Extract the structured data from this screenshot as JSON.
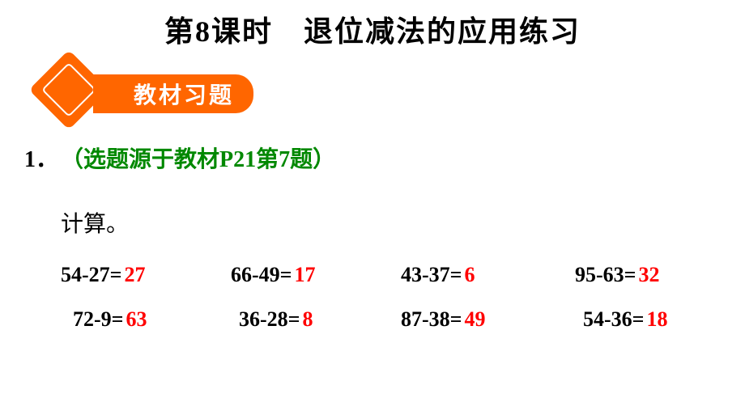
{
  "title": "第8课时　退位减法的应用练习",
  "section_label": "教材习题",
  "question_number": "1．",
  "question_source": "（选题源于教材P21第7题）",
  "instruction": "计算。",
  "colors": {
    "accent": "#ff6600",
    "source_text": "#008800",
    "answer": "#ff0000",
    "text": "#000000",
    "background": "#ffffff"
  },
  "fonts": {
    "title_size": 36,
    "body_size": 28,
    "problem_size": 26
  },
  "problems": {
    "row1": [
      {
        "expr": "54-27=",
        "answer": "27"
      },
      {
        "expr": "66-49=",
        "answer": "17"
      },
      {
        "expr": "43-37=",
        "answer": "6"
      },
      {
        "expr": "95-63=",
        "answer": "32"
      }
    ],
    "row2": [
      {
        "expr": "72-9=",
        "answer": "63"
      },
      {
        "expr": "36-28=",
        "answer": "8"
      },
      {
        "expr": "87-38=",
        "answer": "49"
      },
      {
        "expr": "54-36=",
        "answer": "18"
      }
    ]
  }
}
